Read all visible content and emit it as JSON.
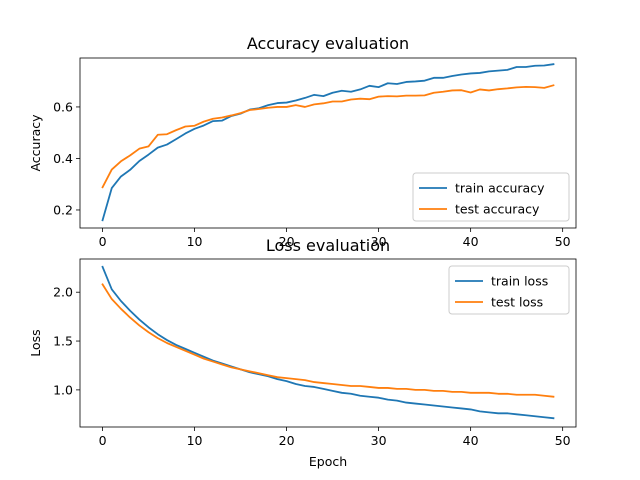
{
  "chart_data": [
    {
      "type": "line",
      "title": "Accuracy evaluation",
      "xlabel": "",
      "ylabel": "Accuracy",
      "xlim": [
        -2.45,
        51.45
      ],
      "ylim": [
        0.13,
        0.79
      ],
      "xticks": [
        0,
        10,
        20,
        30,
        40,
        50
      ],
      "yticks": [
        0.2,
        0.4,
        0.6
      ],
      "ytick_labels": [
        "0.2",
        "0.4",
        "0.6"
      ],
      "legend_position": "lower-right",
      "grid": false,
      "x": [
        0,
        1,
        2,
        3,
        4,
        5,
        6,
        7,
        8,
        9,
        10,
        11,
        12,
        13,
        14,
        15,
        16,
        17,
        18,
        19,
        20,
        21,
        22,
        23,
        24,
        25,
        26,
        27,
        28,
        29,
        30,
        31,
        32,
        33,
        34,
        35,
        36,
        37,
        38,
        39,
        40,
        41,
        42,
        43,
        44,
        45,
        46,
        47,
        48,
        49
      ],
      "series": [
        {
          "name": "train accuracy",
          "color": "#1f77b4",
          "values": [
            0.16,
            0.285,
            0.33,
            0.356,
            0.39,
            0.415,
            0.442,
            0.454,
            0.475,
            0.497,
            0.515,
            0.528,
            0.545,
            0.547,
            0.565,
            0.574,
            0.59,
            0.595,
            0.607,
            0.615,
            0.617,
            0.625,
            0.635,
            0.647,
            0.642,
            0.655,
            0.663,
            0.659,
            0.668,
            0.682,
            0.677,
            0.692,
            0.689,
            0.697,
            0.699,
            0.702,
            0.713,
            0.713,
            0.72,
            0.726,
            0.73,
            0.732,
            0.738,
            0.741,
            0.744,
            0.755,
            0.755,
            0.76,
            0.761,
            0.766
          ]
        },
        {
          "name": "test accuracy",
          "color": "#ff7f0e",
          "values": [
            0.288,
            0.357,
            0.389,
            0.412,
            0.438,
            0.447,
            0.492,
            0.494,
            0.51,
            0.524,
            0.527,
            0.543,
            0.554,
            0.559,
            0.567,
            0.576,
            0.588,
            0.592,
            0.597,
            0.6,
            0.6,
            0.607,
            0.6,
            0.61,
            0.614,
            0.621,
            0.621,
            0.629,
            0.632,
            0.63,
            0.64,
            0.642,
            0.641,
            0.644,
            0.644,
            0.645,
            0.655,
            0.659,
            0.664,
            0.665,
            0.656,
            0.668,
            0.664,
            0.669,
            0.672,
            0.676,
            0.678,
            0.677,
            0.674,
            0.684
          ]
        }
      ]
    },
    {
      "type": "line",
      "title": "Loss evaluation",
      "xlabel": "Epoch",
      "ylabel": "Loss",
      "xlim": [
        -2.45,
        51.45
      ],
      "ylim": [
        0.62,
        2.34
      ],
      "xticks": [
        0,
        10,
        20,
        30,
        40,
        50
      ],
      "yticks": [
        1.0,
        1.5,
        2.0
      ],
      "ytick_labels": [
        "1.0",
        "1.5",
        "2.0"
      ],
      "legend_position": "upper-right",
      "grid": false,
      "x": [
        0,
        1,
        2,
        3,
        4,
        5,
        6,
        7,
        8,
        9,
        10,
        11,
        12,
        13,
        14,
        15,
        16,
        17,
        18,
        19,
        20,
        21,
        22,
        23,
        24,
        25,
        26,
        27,
        28,
        29,
        30,
        31,
        32,
        33,
        34,
        35,
        36,
        37,
        38,
        39,
        40,
        41,
        42,
        43,
        44,
        45,
        46,
        47,
        48,
        49
      ],
      "series": [
        {
          "name": "train loss",
          "color": "#1f77b4",
          "values": [
            2.26,
            2.03,
            1.91,
            1.81,
            1.72,
            1.64,
            1.57,
            1.51,
            1.46,
            1.42,
            1.38,
            1.34,
            1.3,
            1.27,
            1.24,
            1.21,
            1.18,
            1.16,
            1.14,
            1.11,
            1.09,
            1.06,
            1.04,
            1.03,
            1.01,
            0.99,
            0.97,
            0.96,
            0.94,
            0.93,
            0.92,
            0.9,
            0.89,
            0.87,
            0.86,
            0.85,
            0.84,
            0.83,
            0.82,
            0.81,
            0.8,
            0.78,
            0.77,
            0.76,
            0.76,
            0.75,
            0.74,
            0.73,
            0.72,
            0.71
          ]
        },
        {
          "name": "test loss",
          "color": "#ff7f0e",
          "values": [
            2.08,
            1.93,
            1.83,
            1.74,
            1.66,
            1.59,
            1.53,
            1.48,
            1.44,
            1.4,
            1.36,
            1.32,
            1.29,
            1.26,
            1.23,
            1.21,
            1.19,
            1.17,
            1.15,
            1.13,
            1.12,
            1.11,
            1.1,
            1.08,
            1.07,
            1.06,
            1.05,
            1.04,
            1.04,
            1.03,
            1.02,
            1.02,
            1.01,
            1.01,
            1.0,
            1.0,
            0.99,
            0.99,
            0.98,
            0.98,
            0.97,
            0.97,
            0.97,
            0.96,
            0.96,
            0.95,
            0.95,
            0.95,
            0.94,
            0.93
          ]
        }
      ]
    }
  ]
}
